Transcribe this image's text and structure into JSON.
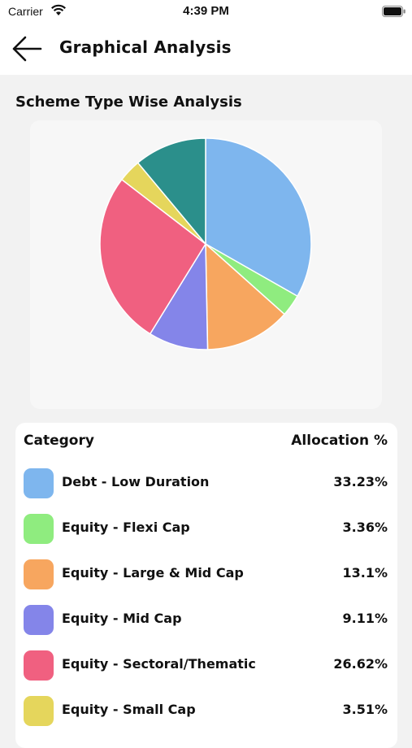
{
  "status_bar": {
    "carrier": "Carrier",
    "time": "4:39 PM"
  },
  "header": {
    "title": "Graphical Analysis"
  },
  "section": {
    "title": "Scheme Type Wise Analysis"
  },
  "table": {
    "col_category": "Category",
    "col_allocation": "Allocation %",
    "rows": [
      {
        "label": "Debt - Low Duration",
        "value": "33.23%",
        "color": "#7eb6ee"
      },
      {
        "label": "Equity - Flexi Cap",
        "value": "3.36%",
        "color": "#8fec7f"
      },
      {
        "label": "Equity - Large & Mid Cap",
        "value": "13.1%",
        "color": "#f7a65f"
      },
      {
        "label": "Equity - Mid Cap",
        "value": "9.11%",
        "color": "#8485e9"
      },
      {
        "label": "Equity - Sectoral/Thematic",
        "value": "26.62%",
        "color": "#f06080"
      },
      {
        "label": "Equity - Small Cap",
        "value": "3.51%",
        "color": "#e5d65c"
      }
    ]
  },
  "chart_data": {
    "type": "pie",
    "categories": [
      "Debt - Low Duration",
      "Equity - Flexi Cap",
      "Equity - Large & Mid Cap",
      "Equity - Mid Cap",
      "Equity - Sectoral/Thematic",
      "Equity - Small Cap",
      ""
    ],
    "values": [
      33.23,
      3.36,
      13.1,
      9.11,
      26.62,
      3.51,
      11.07
    ],
    "colors": [
      "#7eb6ee",
      "#8fec7f",
      "#f7a65f",
      "#8485e9",
      "#f06080",
      "#e5d65c",
      "#2b8f8b"
    ]
  }
}
